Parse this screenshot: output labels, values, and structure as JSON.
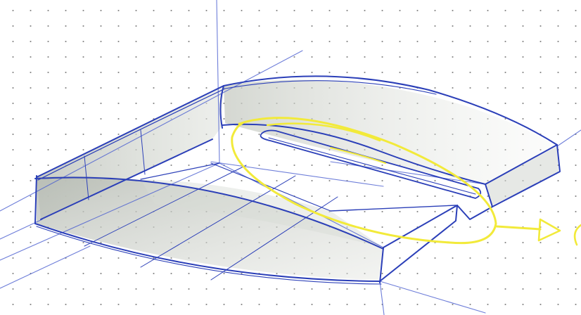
{
  "scene": {
    "subject": "hand-drawn-product-sketch",
    "background": "dot-grid-paper",
    "colors": {
      "paper": "#ffffff",
      "grid_dots": "#8a8a8a",
      "ink": "#2b3fb8",
      "ink_light": "#5b6fd6",
      "shading": "#c9cdc6",
      "highlight": "#f2ea3a"
    }
  }
}
